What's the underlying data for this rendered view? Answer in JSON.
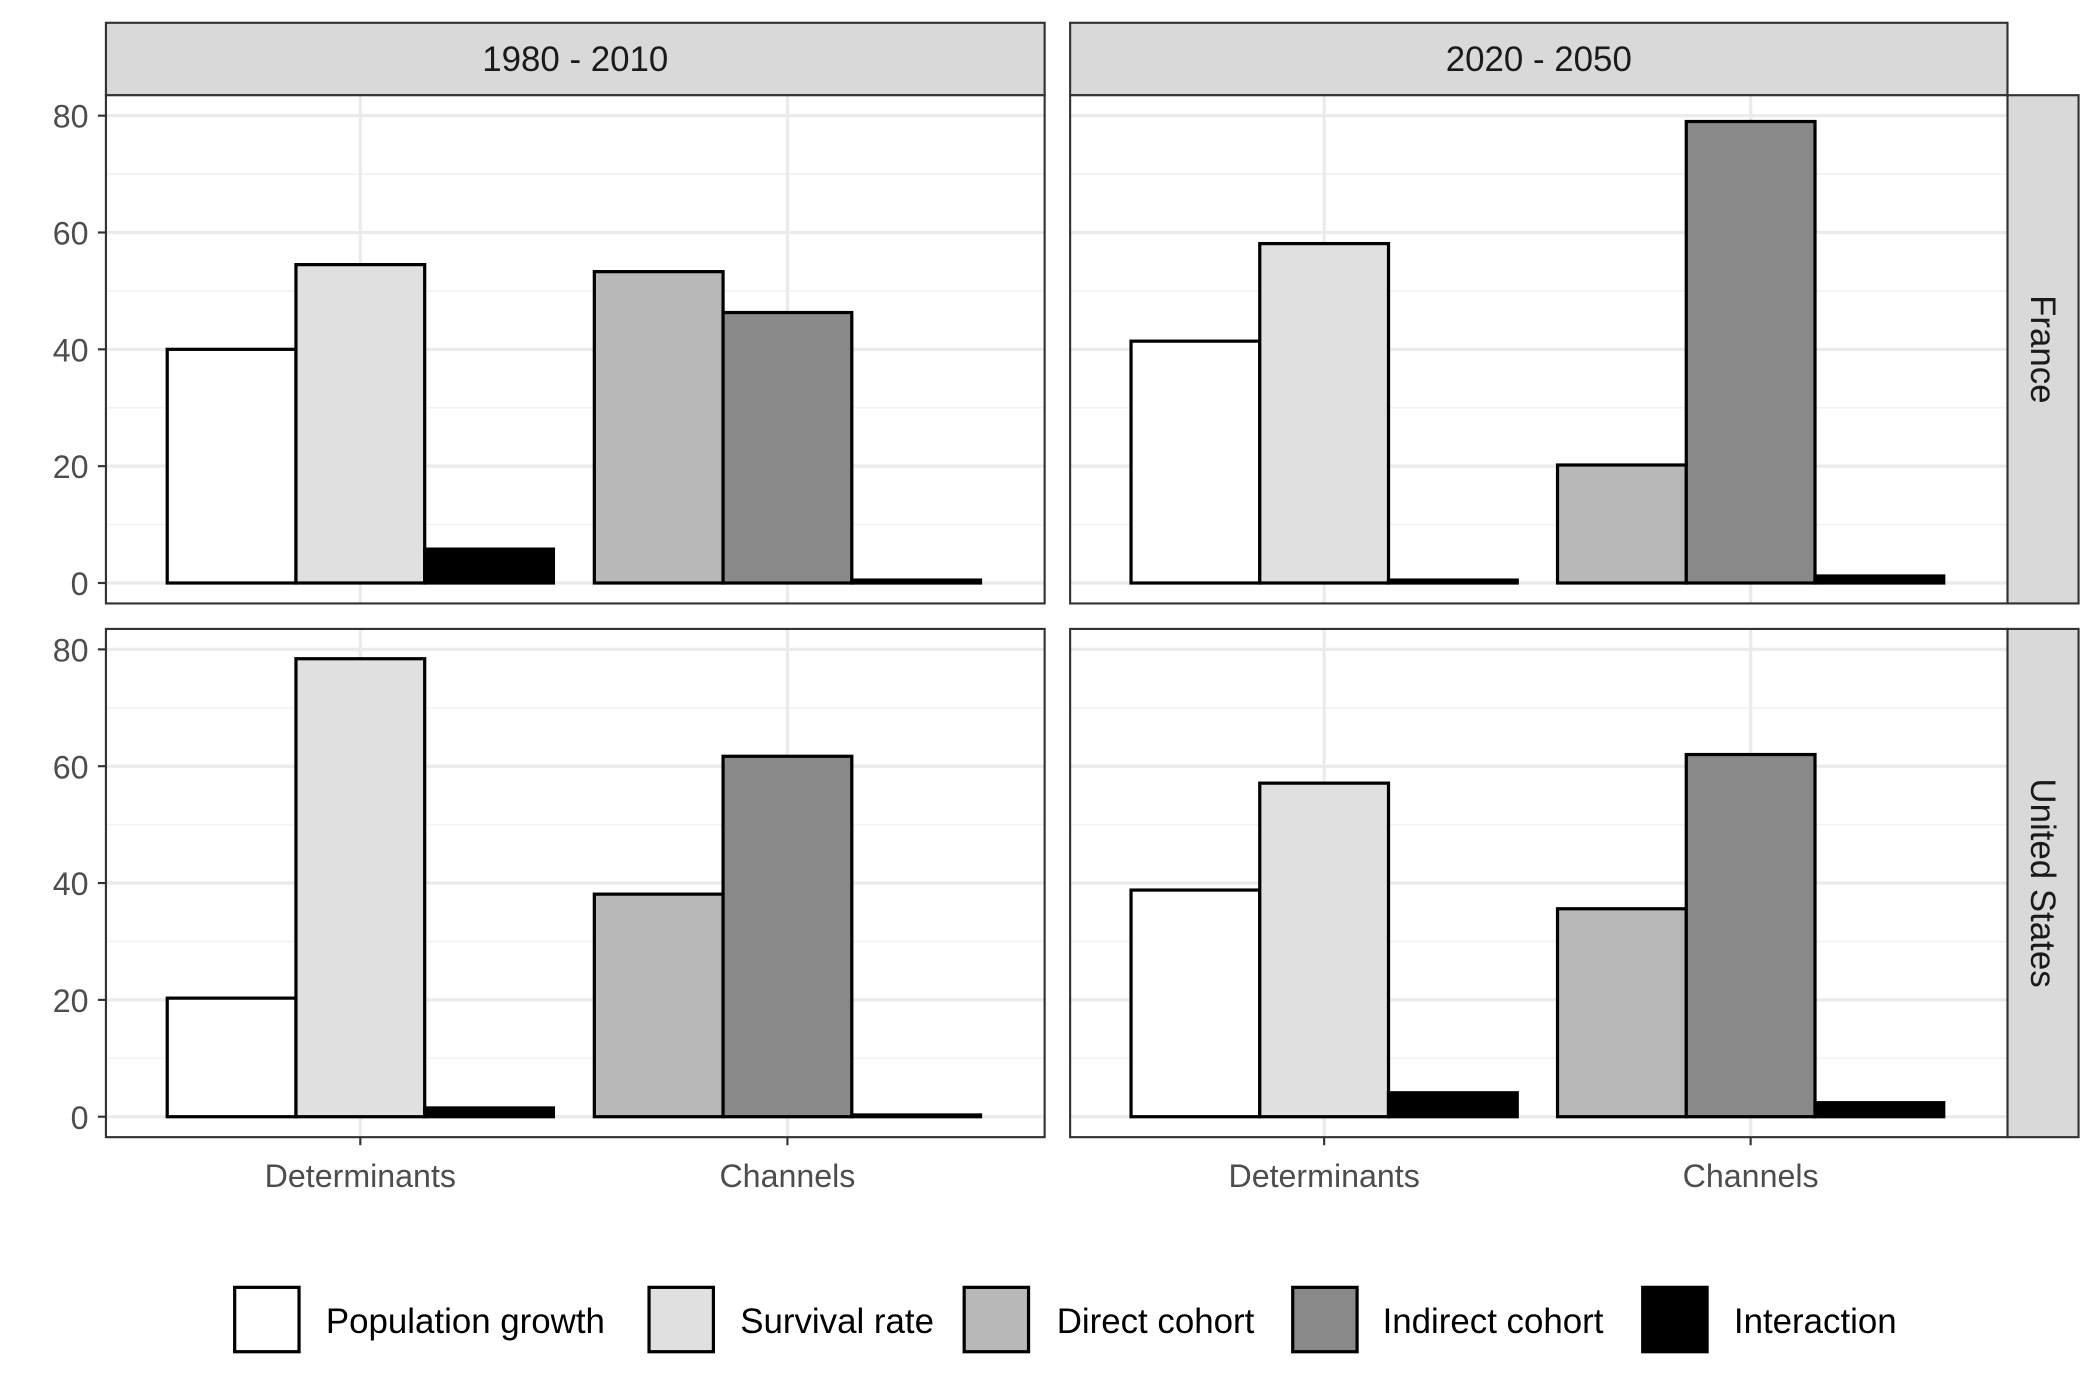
{
  "chart_data": {
    "type": "bar",
    "layout": "facet grid: rows = country, columns = period",
    "facet_columns": [
      "1980 - 2010",
      "2020 - 2050"
    ],
    "facet_rows": [
      "France",
      "United States"
    ],
    "categories": [
      "Determinants",
      "Channels"
    ],
    "series_names": [
      "Population growth",
      "Survival rate",
      "Direct cohort",
      "Indirect cohort",
      "Interaction"
    ],
    "series_colors": [
      "#ffffff",
      "#e0e0e0",
      "#b8b8b8",
      "#898989",
      "#000000"
    ],
    "bar_outline_color": "#000000",
    "ylim": [
      -3.5,
      83.5
    ],
    "yticks": [
      0,
      20,
      40,
      60,
      80
    ],
    "grid": true,
    "legend_position": "bottom",
    "xlabel": "",
    "ylabel": "",
    "panels": [
      {
        "row": "France",
        "column": "1980 - 2010",
        "bars": {
          "Determinants": [
            {
              "series": "Population growth",
              "value": 40.0
            },
            {
              "series": "Survival rate",
              "value": 54.5
            },
            {
              "series": "Interaction",
              "value": 5.8
            }
          ],
          "Channels": [
            {
              "series": "Direct cohort",
              "value": 53.3
            },
            {
              "series": "Indirect cohort",
              "value": 46.3
            },
            {
              "series": "Interaction",
              "value": 0.5
            }
          ]
        }
      },
      {
        "row": "France",
        "column": "2020 - 2050",
        "bars": {
          "Determinants": [
            {
              "series": "Population growth",
              "value": 41.4
            },
            {
              "series": "Survival rate",
              "value": 58.1
            },
            {
              "series": "Interaction",
              "value": 0.5
            }
          ],
          "Channels": [
            {
              "series": "Direct cohort",
              "value": 20.2
            },
            {
              "series": "Indirect cohort",
              "value": 79.0
            },
            {
              "series": "Interaction",
              "value": 1.2
            }
          ]
        }
      },
      {
        "row": "United States",
        "column": "1980 - 2010",
        "bars": {
          "Determinants": [
            {
              "series": "Population growth",
              "value": 20.3
            },
            {
              "series": "Survival rate",
              "value": 78.4
            },
            {
              "series": "Interaction",
              "value": 1.5
            }
          ],
          "Channels": [
            {
              "series": "Direct cohort",
              "value": 38.1
            },
            {
              "series": "Indirect cohort",
              "value": 61.7
            },
            {
              "series": "Interaction",
              "value": 0.3
            }
          ]
        }
      },
      {
        "row": "United States",
        "column": "2020 - 2050",
        "bars": {
          "Determinants": [
            {
              "series": "Population growth",
              "value": 38.8
            },
            {
              "series": "Survival rate",
              "value": 57.1
            },
            {
              "series": "Interaction",
              "value": 4.1
            }
          ],
          "Channels": [
            {
              "series": "Direct cohort",
              "value": 35.6
            },
            {
              "series": "Indirect cohort",
              "value": 62.0
            },
            {
              "series": "Interaction",
              "value": 2.4
            }
          ]
        }
      }
    ]
  }
}
